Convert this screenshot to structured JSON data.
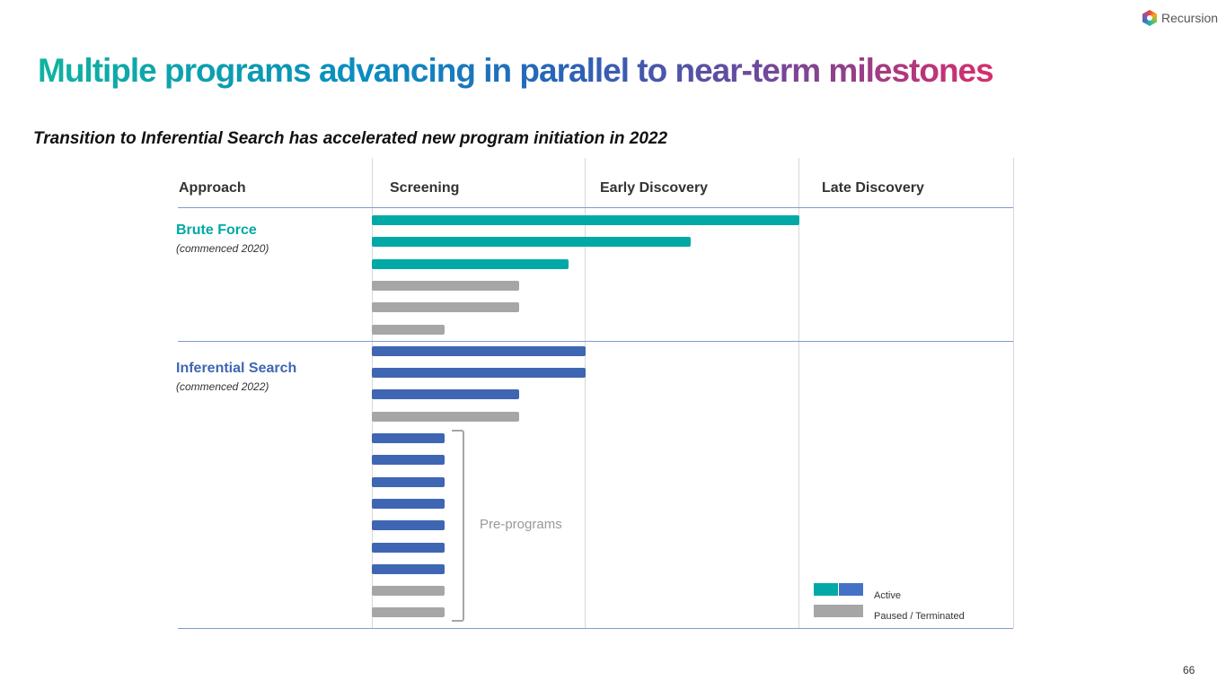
{
  "brand": {
    "name": "Recursion"
  },
  "title": "Multiple programs advancing in parallel to near-term milestones",
  "subtitle": "Transition to Inferential Search has accelerated new program initiation in 2022",
  "page_number": "66",
  "chart_data": {
    "type": "bar",
    "orientation": "horizontal",
    "x_stages": [
      "Screening",
      "Early Discovery",
      "Late Discovery"
    ],
    "xlim": [
      0,
      3
    ],
    "column_header": "Approach",
    "groups": [
      {
        "name": "Brute Force",
        "note": "(commenced 2020)",
        "color": "#00a9a5"
      },
      {
        "name": "Inferential Search",
        "note": "(commenced 2022)",
        "color": "#3f66b3"
      }
    ],
    "annotation": "Pre-programs",
    "legend": [
      {
        "label": "Active",
        "colors": [
          "#00a9a5",
          "#4472c4"
        ]
      },
      {
        "label": "Paused / Terminated",
        "colors": [
          "#a6a6a6"
        ]
      }
    ],
    "status_colors": {
      "paused": "#a6a6a6"
    },
    "bars": [
      {
        "group": 0,
        "status": "active",
        "value": 2.0
      },
      {
        "group": 0,
        "status": "active",
        "value": 1.49
      },
      {
        "group": 0,
        "status": "active",
        "value": 0.92
      },
      {
        "group": 0,
        "status": "paused",
        "value": 0.69
      },
      {
        "group": 0,
        "status": "paused",
        "value": 0.69
      },
      {
        "group": 0,
        "status": "paused",
        "value": 0.34
      },
      {
        "group": 1,
        "status": "active",
        "value": 1.0
      },
      {
        "group": 1,
        "status": "active",
        "value": 1.0
      },
      {
        "group": 1,
        "status": "active",
        "value": 0.69
      },
      {
        "group": 1,
        "status": "paused",
        "value": 0.69
      },
      {
        "group": 1,
        "status": "active",
        "value": 0.34
      },
      {
        "group": 1,
        "status": "active",
        "value": 0.34
      },
      {
        "group": 1,
        "status": "active",
        "value": 0.34
      },
      {
        "group": 1,
        "status": "active",
        "value": 0.34
      },
      {
        "group": 1,
        "status": "active",
        "value": 0.34
      },
      {
        "group": 1,
        "status": "active",
        "value": 0.34
      },
      {
        "group": 1,
        "status": "active",
        "value": 0.34
      },
      {
        "group": 1,
        "status": "paused",
        "value": 0.34
      },
      {
        "group": 1,
        "status": "paused",
        "value": 0.34
      }
    ]
  }
}
